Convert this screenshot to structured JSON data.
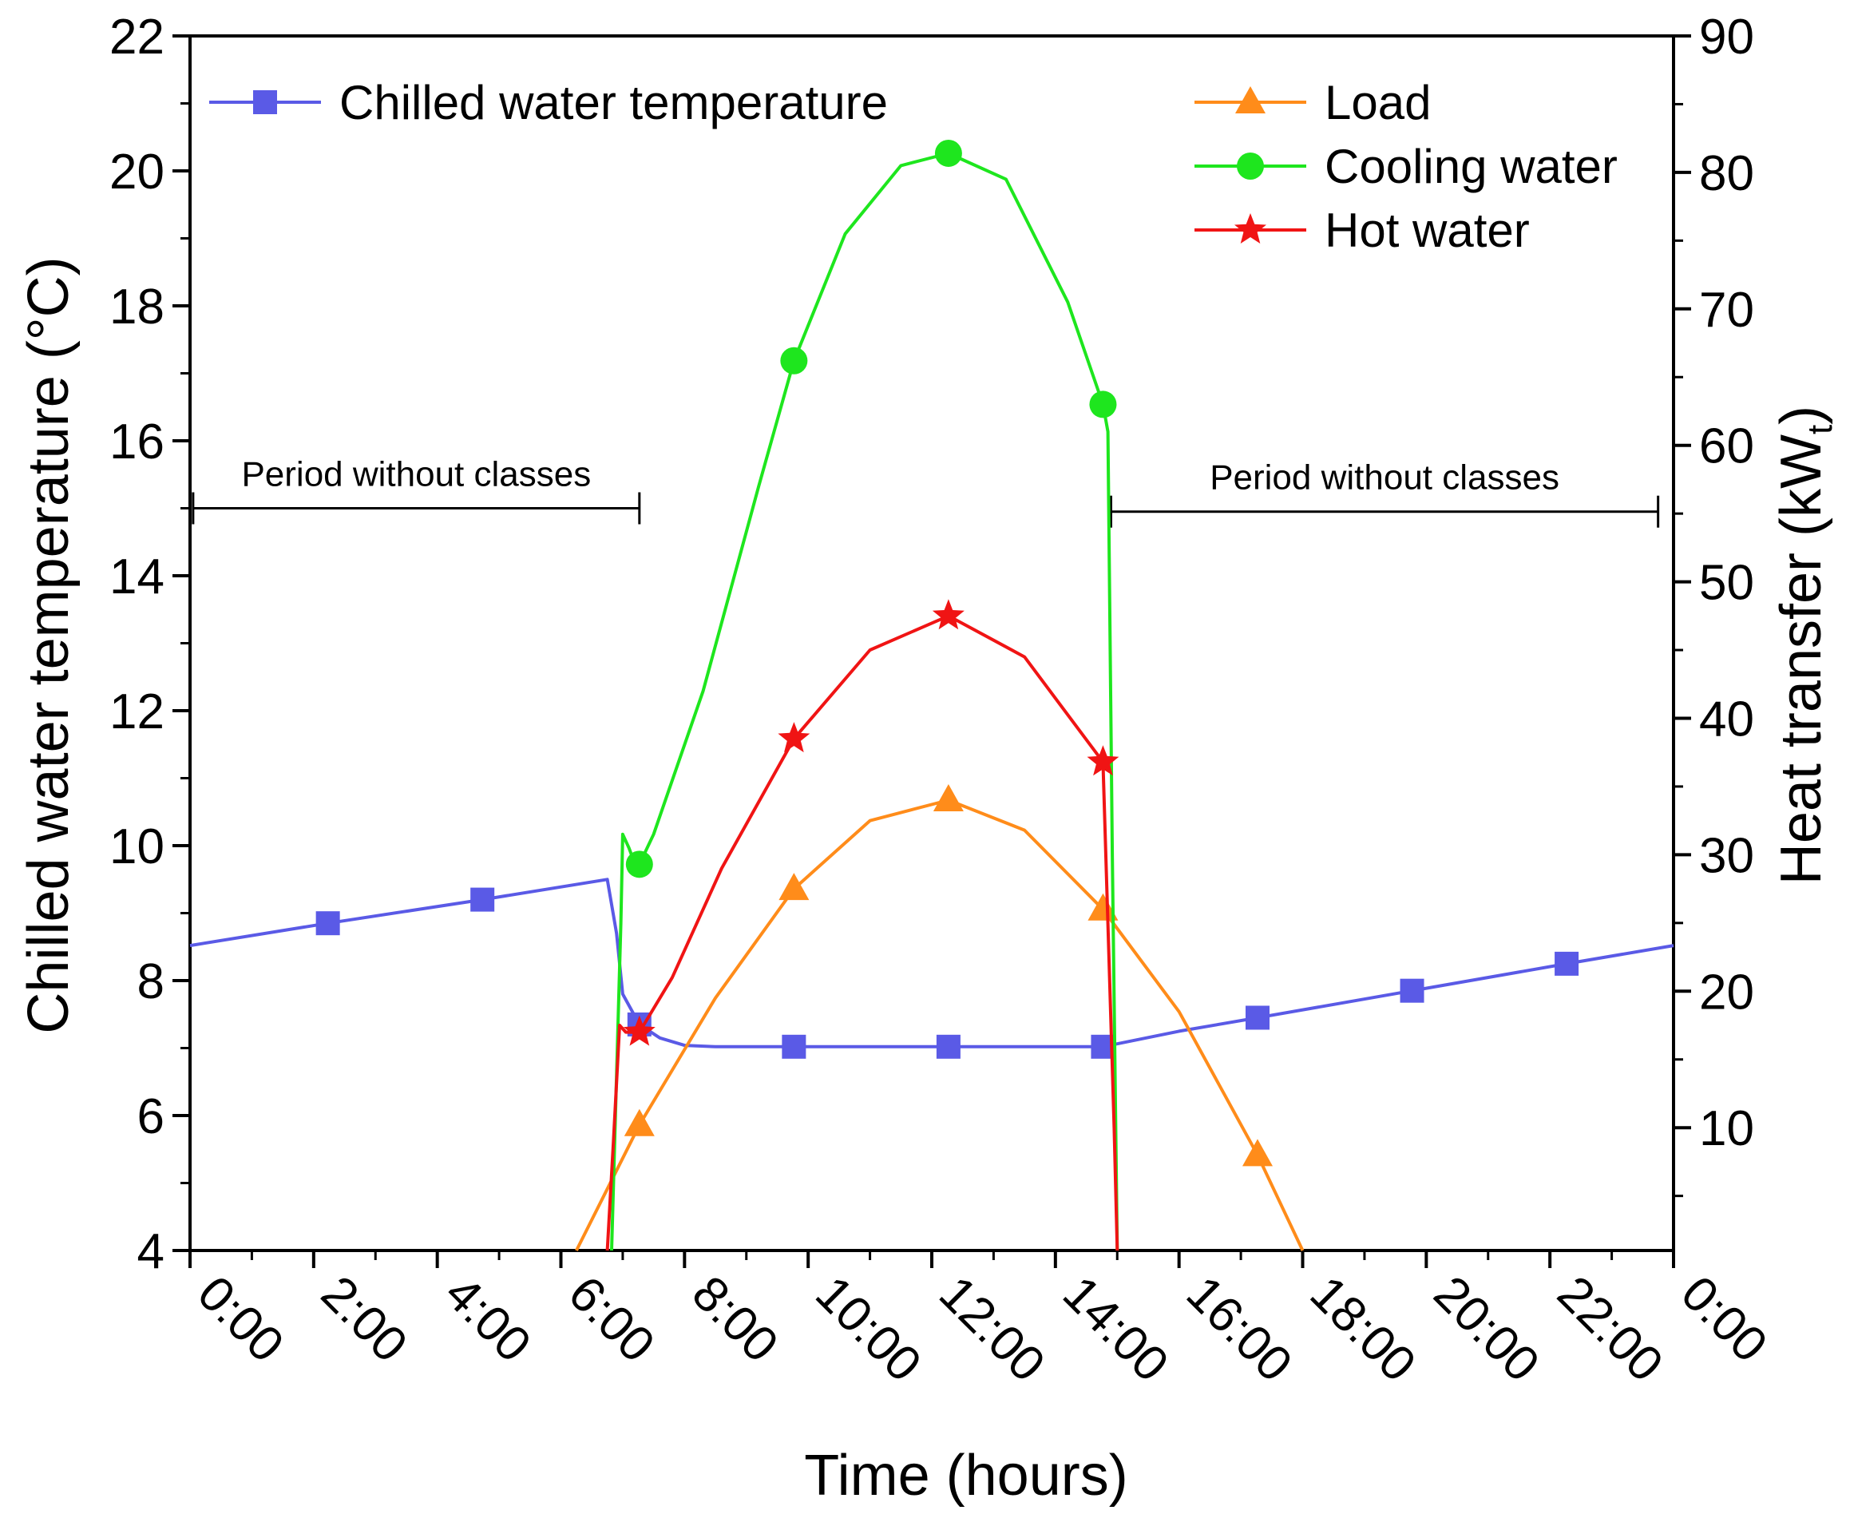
{
  "chart_data": {
    "type": "line",
    "xlabel": "Time (hours)",
    "ylabel_left": "Chilled water temperature (°C)",
    "ylabel_right": "Heat transfer (kWₜ)",
    "ylabel_right_main": "Heat transfer (kW",
    "ylabel_right_sub": "t",
    "ylabel_right_close": ")",
    "xlim": [
      0,
      24
    ],
    "ylim_left": [
      4,
      22
    ],
    "ylim_right": [
      1,
      90
    ],
    "x_ticks": [
      0,
      2,
      4,
      6,
      8,
      10,
      12,
      14,
      16,
      18,
      20,
      22,
      24
    ],
    "x_tick_labels": [
      "0:00",
      "2:00",
      "4:00",
      "6:00",
      "8:00",
      "10:00",
      "12:00",
      "14:00",
      "16:00",
      "18:00",
      "20:00",
      "22:00",
      "0:00"
    ],
    "y_left_ticks": [
      4,
      6,
      8,
      10,
      12,
      14,
      16,
      18,
      20,
      22
    ],
    "y_left_tick_labels": [
      "4",
      "6",
      "8",
      "10",
      "12",
      "14",
      "16",
      "18",
      "20",
      "22"
    ],
    "y_right_ticks": [
      10,
      20,
      30,
      40,
      50,
      60,
      70,
      80,
      90
    ],
    "y_right_tick_labels": [
      "10",
      "20",
      "30",
      "40",
      "50",
      "60",
      "70",
      "80",
      "90"
    ],
    "series": [
      {
        "name": "Chilled water temperature",
        "axis": "left",
        "color": "#5a5ae6",
        "marker": "square",
        "x": [
          0,
          2.23,
          4.73,
          6.75,
          6.9,
          7.0,
          7.27,
          7.6,
          8.0,
          8.5,
          9.77,
          12.27,
          14.77,
          16.0,
          17.27,
          19.77,
          22.27,
          24.0
        ],
        "y": [
          8.52,
          8.85,
          9.2,
          9.5,
          8.7,
          7.8,
          7.35,
          7.15,
          7.04,
          7.02,
          7.02,
          7.02,
          7.02,
          7.25,
          7.45,
          7.85,
          8.25,
          8.52
        ],
        "marker_x": [
          2.23,
          4.73,
          7.27,
          9.77,
          12.27,
          14.77,
          17.27,
          19.77,
          22.27
        ],
        "marker_y": [
          8.85,
          9.2,
          7.35,
          7.02,
          7.02,
          7.02,
          7.45,
          7.85,
          8.25
        ]
      },
      {
        "name": "Load",
        "axis": "right",
        "color": "#ff8c1a",
        "marker": "triangle",
        "x": [
          6.25,
          7.27,
          8.5,
          9.77,
          11.0,
          12.27,
          13.5,
          14.77,
          16.0,
          17.27,
          18.0
        ],
        "y": [
          1,
          10.2,
          19.5,
          27.5,
          32.5,
          34.0,
          31.8,
          26.0,
          18.5,
          8.0,
          1
        ],
        "marker_x": [
          7.27,
          9.77,
          12.27,
          14.77,
          17.27
        ],
        "marker_y": [
          10.2,
          27.5,
          34.0,
          26.0,
          8.0
        ]
      },
      {
        "name": "Cooling water",
        "axis": "right",
        "color": "#1ee61e",
        "marker": "circle",
        "x": [
          6.82,
          6.97,
          7.0,
          7.1,
          7.2,
          7.27,
          7.5,
          8.3,
          9.2,
          9.77,
          10.6,
          11.5,
          12.27,
          13.2,
          14.2,
          14.77,
          14.85,
          14.92,
          15.0
        ],
        "y": [
          1,
          25,
          31.5,
          30.5,
          29.3,
          29.3,
          31.5,
          42.0,
          57.0,
          66.2,
          75.5,
          80.5,
          81.4,
          79.5,
          70.5,
          63.0,
          61.0,
          30.0,
          1
        ],
        "marker_x": [
          7.27,
          9.77,
          12.27,
          14.77
        ],
        "marker_y": [
          29.3,
          66.2,
          81.4,
          63.0
        ]
      },
      {
        "name": "Hot water",
        "axis": "right",
        "color": "#f01414",
        "marker": "star",
        "x": [
          6.75,
          6.85,
          6.95,
          7.05,
          7.27,
          7.8,
          8.6,
          9.77,
          11.0,
          12.27,
          13.5,
          14.77,
          14.95,
          15.0
        ],
        "y": [
          1,
          9.0,
          17.5,
          17.0,
          17.0,
          21.0,
          29.0,
          38.5,
          45.0,
          47.5,
          44.5,
          36.8,
          10.0,
          1
        ],
        "marker_x": [
          7.27,
          9.77,
          12.27,
          14.77
        ],
        "marker_y": [
          17.0,
          38.5,
          47.5,
          36.8
        ]
      }
    ],
    "legend": {
      "left": [
        "Chilled water temperature"
      ],
      "right": [
        "Load",
        "Cooling water",
        "Hot water"
      ]
    },
    "annotations": [
      {
        "text": "Period without classes",
        "x_start": 0.05,
        "x_end": 7.27,
        "y_left": 15.0
      },
      {
        "text": "Period without classes",
        "x_start": 14.9,
        "x_end": 23.75,
        "y_left": 14.95
      }
    ]
  }
}
